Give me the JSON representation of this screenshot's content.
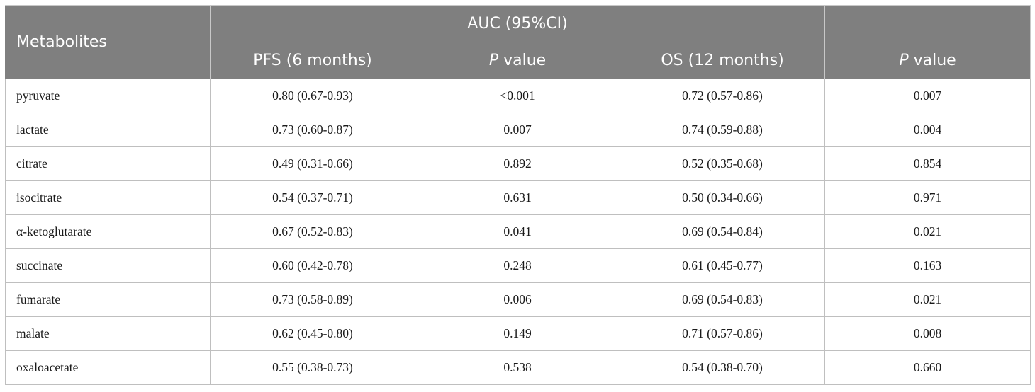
{
  "header": {
    "metabolites": "Metabolites",
    "auc": "AUC (95%CI)",
    "pfs": "PFS (6 months)",
    "p_italic": "P",
    "p_suffix": " value",
    "os": "OS (12 months)"
  },
  "rows": [
    {
      "name": "pyruvate",
      "pfs": "0.80 (0.67-0.93)",
      "pfs_p": "<0.001",
      "os": "0.72 (0.57-0.86)",
      "os_p": "0.007"
    },
    {
      "name": "lactate",
      "pfs": "0.73 (0.60-0.87)",
      "pfs_p": "0.007",
      "os": "0.74 (0.59-0.88)",
      "os_p": "0.004"
    },
    {
      "name": "citrate",
      "pfs": "0.49 (0.31-0.66)",
      "pfs_p": "0.892",
      "os": "0.52 (0.35-0.68)",
      "os_p": "0.854"
    },
    {
      "name": "isocitrate",
      "pfs": "0.54 (0.37-0.71)",
      "pfs_p": "0.631",
      "os": "0.50 (0.34-0.66)",
      "os_p": "0.971"
    },
    {
      "name": "α-ketoglutarate",
      "pfs": "0.67 (0.52-0.83)",
      "pfs_p": "0.041",
      "os": "0.69 (0.54-0.84)",
      "os_p": "0.021"
    },
    {
      "name": "succinate",
      "pfs": "0.60 (0.42-0.78)",
      "pfs_p": "0.248",
      "os": "0.61 (0.45-0.77)",
      "os_p": "0.163"
    },
    {
      "name": "fumarate",
      "pfs": "0.73 (0.58-0.89)",
      "pfs_p": "0.006",
      "os": "0.69 (0.54-0.83)",
      "os_p": "0.021"
    },
    {
      "name": "malate",
      "pfs": "0.62 (0.45-0.80)",
      "pfs_p": "0.149",
      "os": "0.71 (0.57-0.86)",
      "os_p": "0.008"
    },
    {
      "name": "oxaloacetate",
      "pfs": "0.55 (0.38-0.73)",
      "pfs_p": "0.538",
      "os": "0.54 (0.38-0.70)",
      "os_p": "0.660"
    }
  ]
}
